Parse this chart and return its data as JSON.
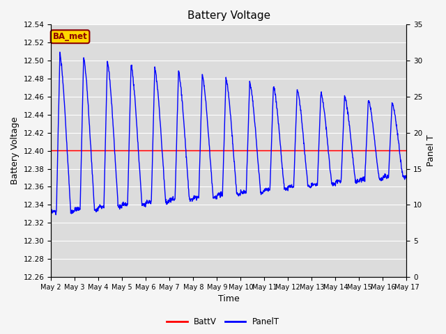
{
  "title": "Battery Voltage",
  "xlabel": "Time",
  "ylabel_left": "Battery Voltage",
  "ylabel_right": "Panel T",
  "ylim_left": [
    12.26,
    12.54
  ],
  "ylim_right": [
    0,
    35
  ],
  "yticks_left": [
    12.26,
    12.28,
    12.3,
    12.32,
    12.34,
    12.36,
    12.38,
    12.4,
    12.42,
    12.44,
    12.46,
    12.48,
    12.5,
    12.52,
    12.54
  ],
  "yticks_right": [
    0,
    5,
    10,
    15,
    20,
    25,
    30,
    35
  ],
  "xtick_labels": [
    "May 2",
    "May 3",
    "May 4",
    "May 5",
    "May 6",
    "May 7",
    "May 8",
    "May 9",
    "May 10",
    "May 11",
    "May 12",
    "May 13",
    "May 14",
    "May 15",
    "May 16",
    "May 17"
  ],
  "batt_v_value": 12.4,
  "batt_color": "#ff0000",
  "panel_color": "#0000ff",
  "background_color": "#dcdcdc",
  "fig_bg_color": "#f5f5f5",
  "annotation_text": "BA_met",
  "annotation_bg": "#ffd700",
  "annotation_border": "#8b0000",
  "legend_labels": [
    "BattV",
    "PanelT"
  ],
  "num_days": 15,
  "figsize": [
    6.4,
    4.8
  ],
  "dpi": 100
}
